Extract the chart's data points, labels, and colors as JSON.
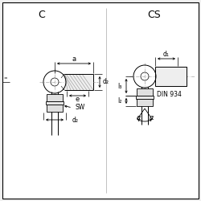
{
  "bg_color": "#f0f0f0",
  "drawing_bg": "#ffffff",
  "line_color": "#000000",
  "dim_color": "#000000",
  "center_color": "#aaaaaa",
  "hatch_color": "#888888",
  "title_C": "C",
  "title_CS": "CS",
  "din_label": "DIN 934",
  "label_a": "a",
  "label_e": "e",
  "label_d1": "d₁",
  "label_d2": "d₂",
  "label_l2": "l₂",
  "label_l3": "l₃",
  "label_SW": "SW",
  "label_alpha": "α",
  "border_lw": 0.8
}
